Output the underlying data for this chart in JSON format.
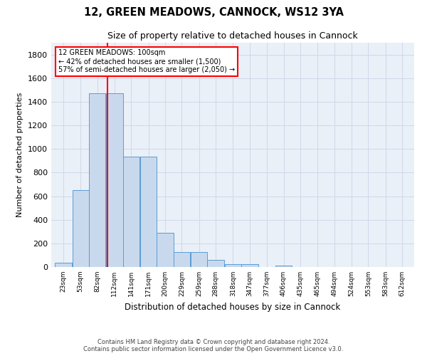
{
  "title": "12, GREEN MEADOWS, CANNOCK, WS12 3YA",
  "subtitle": "Size of property relative to detached houses in Cannock",
  "xlabel": "Distribution of detached houses by size in Cannock",
  "ylabel": "Number of detached properties",
  "bin_labels": [
    "23sqm",
    "53sqm",
    "82sqm",
    "112sqm",
    "141sqm",
    "171sqm",
    "200sqm",
    "229sqm",
    "259sqm",
    "288sqm",
    "318sqm",
    "347sqm",
    "377sqm",
    "406sqm",
    "435sqm",
    "465sqm",
    "494sqm",
    "524sqm",
    "553sqm",
    "583sqm",
    "612sqm"
  ],
  "bin_centers": [
    23,
    53,
    82,
    112,
    141,
    171,
    200,
    229,
    259,
    288,
    318,
    347,
    377,
    406,
    435,
    465,
    494,
    524,
    553,
    583,
    612
  ],
  "bar_heights": [
    35,
    650,
    1470,
    1470,
    935,
    935,
    290,
    125,
    125,
    60,
    25,
    25,
    0,
    15,
    0,
    0,
    0,
    0,
    0,
    0
  ],
  "bar_color": "#c9d9ed",
  "bar_edge_color": "#5b9bd5",
  "property_size": 100,
  "property_line_color": "red",
  "annotation_line1": "12 GREEN MEADOWS: 100sqm",
  "annotation_line2": "← 42% of detached houses are smaller (1,500)",
  "annotation_line3": "57% of semi-detached houses are larger (2,050) →",
  "annotation_box_color": "red",
  "ylim": [
    0,
    1900
  ],
  "yticks": [
    0,
    200,
    400,
    600,
    800,
    1000,
    1200,
    1400,
    1600,
    1800
  ],
  "footer_line1": "Contains HM Land Registry data © Crown copyright and database right 2024.",
  "footer_line2": "Contains public sector information licensed under the Open Government Licence v3.0.",
  "grid_color": "#d0d8e8",
  "bg_color": "#eaf0f8",
  "font_family": "DejaVu Sans"
}
